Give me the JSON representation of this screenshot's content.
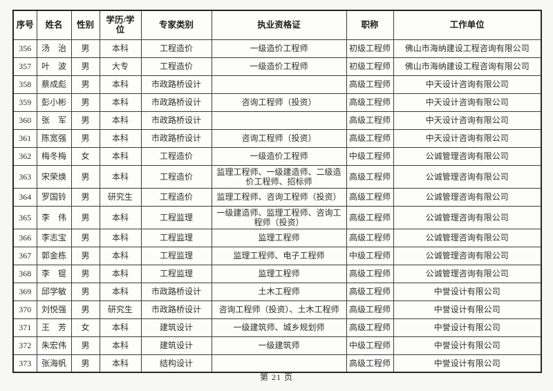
{
  "page": {
    "footer": "第 21 页",
    "background_color": "#f7f7f5",
    "border_color": "#2e2e2e"
  },
  "table": {
    "columns": [
      {
        "key": "index",
        "label": "序号"
      },
      {
        "key": "name",
        "label": "姓名"
      },
      {
        "key": "gender",
        "label": "性别"
      },
      {
        "key": "education",
        "label": "学历/学位"
      },
      {
        "key": "category",
        "label": "专家类别"
      },
      {
        "key": "license",
        "label": "执业资格证"
      },
      {
        "key": "title",
        "label": "职称"
      },
      {
        "key": "employer",
        "label": "工作单位"
      }
    ],
    "rows": [
      [
        "356",
        "汤　治",
        "男",
        "本科",
        "工程造价",
        "一级造价工程师",
        "初级工程师",
        "佛山市海纳建设工程咨询有限公司"
      ],
      [
        "357",
        "叶　波",
        "男",
        "大专",
        "工程造价",
        "一级造价工程师",
        "初级工程师",
        "佛山市海纳建设工程咨询有限公司"
      ],
      [
        "358",
        "蔡成彪",
        "男",
        "本科",
        "市政路桥设计",
        "",
        "高级工程师",
        "中天设计咨询有限公司"
      ],
      [
        "359",
        "彭小彬",
        "男",
        "本科",
        "市政路桥设计",
        "咨询工程师（投资）",
        "高级工程师",
        "中天设计咨询有限公司"
      ],
      [
        "360",
        "张　军",
        "男",
        "本科",
        "市政路桥设计",
        "",
        "高级工程师",
        "中天设计咨询有限公司"
      ],
      [
        "361",
        "陈宽强",
        "男",
        "本科",
        "市政路桥设计",
        "咨询工程师（投资）",
        "高级工程师",
        "中天设计咨询有限公司"
      ],
      [
        "362",
        "梅冬梅",
        "女",
        "本科",
        "工程造价",
        "一级造价工程师",
        "中级工程师",
        "公诚管理咨询有限公司"
      ],
      [
        "363",
        "宋荣焕",
        "男",
        "本科",
        "工程造价",
        "监理工程师、一级建造师、二级造价工程师、招标师",
        "高级工程师",
        "公诚管理咨询有限公司"
      ],
      [
        "364",
        "罗国铃",
        "男",
        "研究生",
        "工程造价",
        "监理工程师、咨询工程师（投资）",
        "高级工程师",
        "公诚管理咨询有限公司"
      ],
      [
        "365",
        "李　伟",
        "男",
        "本科",
        "工程监理",
        "一级建造师、监理工程师、咨询工程师（投资）",
        "高级工程师",
        "公诚管理咨询有限公司"
      ],
      [
        "366",
        "李志宝",
        "男",
        "本科",
        "工程监理",
        "监理工程师",
        "高级工程师",
        "公诚管理咨询有限公司"
      ],
      [
        "367",
        "郭金栋",
        "男",
        "本科",
        "工程监理",
        "监理工程师、电子工程师",
        "中级工程师",
        "公诚管理咨询有限公司"
      ],
      [
        "368",
        "李　锟",
        "男",
        "本科",
        "工程监理",
        "监理工程师",
        "高级工程师",
        "公诚管理咨询有限公司"
      ],
      [
        "369",
        "邱学敏",
        "男",
        "本科",
        "市政路桥设计",
        "土木工程师",
        "高级工程师",
        "中誉设计有限公司"
      ],
      [
        "370",
        "刘悦强",
        "男",
        "研究生",
        "市政路桥设计",
        "咨询工程师（投资）、土木工程师",
        "高级工程师",
        "中誉设计有限公司"
      ],
      [
        "371",
        "王　芳",
        "女",
        "本科",
        "建筑设计",
        "一级建筑师、城乡规划师",
        "高级工程师",
        "中誉设计有限公司"
      ],
      [
        "372",
        "朱宏伟",
        "男",
        "本科",
        "建筑设计",
        "一级建筑师",
        "中级工程师",
        "中誉设计有限公司"
      ],
      [
        "373",
        "张海帆",
        "男",
        "本科",
        "结构设计",
        "",
        "高级工程师",
        "中誉设计有限公司"
      ]
    ]
  }
}
